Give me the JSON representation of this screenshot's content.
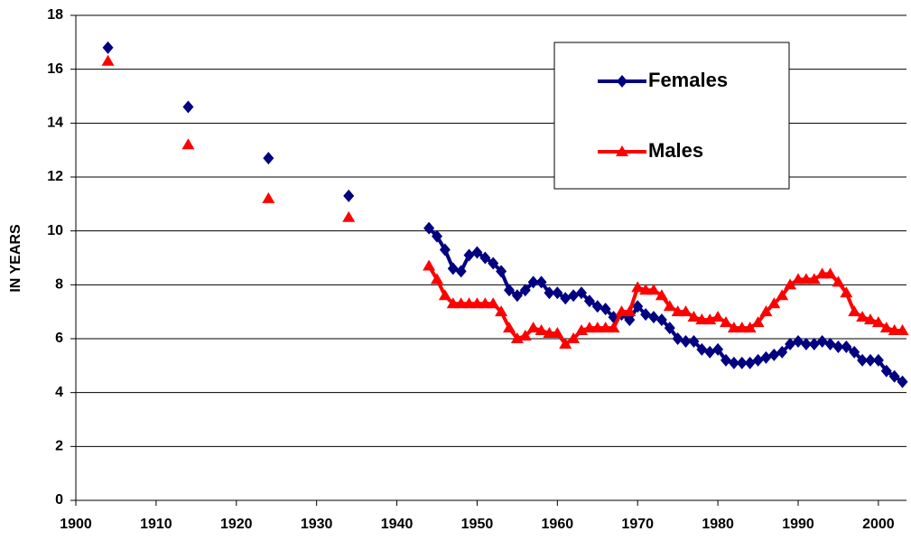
{
  "chart_data": {
    "type": "line",
    "y_label": "IN YEARS",
    "x": [
      1904,
      1909,
      1914,
      1919,
      1924,
      1929,
      1934,
      1939,
      1944,
      1945,
      1946,
      1947,
      1948,
      1949,
      1950,
      1951,
      1952,
      1953,
      1954,
      1955,
      1956,
      1957,
      1958,
      1959,
      1960,
      1961,
      1962,
      1963,
      1964,
      1965,
      1966,
      1967,
      1968,
      1969,
      1970,
      1971,
      1972,
      1973,
      1974,
      1975,
      1976,
      1977,
      1978,
      1979,
      1980,
      1981,
      1982,
      1983,
      1984,
      1985,
      1986,
      1987,
      1988,
      1989,
      1990,
      1991,
      1992,
      1993,
      1994,
      1995,
      1996,
      1997,
      1998,
      1999,
      2000,
      2001,
      2002,
      2003
    ],
    "series": [
      {
        "name": "Females",
        "color": "#000080",
        "marker": "diamond",
        "values": [
          16.8,
          null,
          14.6,
          null,
          12.7,
          null,
          11.3,
          null,
          10.1,
          9.8,
          9.3,
          8.6,
          8.5,
          9.1,
          9.2,
          9.0,
          8.8,
          8.5,
          7.8,
          7.6,
          7.8,
          8.1,
          8.1,
          7.7,
          7.7,
          7.5,
          7.6,
          7.7,
          7.4,
          7.2,
          7.1,
          6.8,
          6.9,
          6.7,
          7.2,
          6.9,
          6.8,
          6.7,
          6.4,
          6.0,
          5.9,
          5.9,
          5.6,
          5.5,
          5.6,
          5.2,
          5.1,
          5.1,
          5.1,
          5.2,
          5.3,
          5.4,
          5.5,
          5.8,
          5.9,
          5.8,
          5.8,
          5.9,
          5.8,
          5.7,
          5.7,
          5.5,
          5.2,
          5.2,
          5.2,
          4.8,
          4.6,
          4.4
        ]
      },
      {
        "name": "Males",
        "color": "#ff0000",
        "marker": "triangle",
        "values": [
          16.3,
          null,
          13.2,
          null,
          11.2,
          null,
          10.5,
          null,
          8.7,
          8.2,
          7.6,
          7.3,
          7.3,
          7.3,
          7.3,
          7.3,
          7.3,
          7.0,
          6.4,
          6.0,
          6.1,
          6.4,
          6.3,
          6.2,
          6.2,
          5.8,
          6.0,
          6.3,
          6.4,
          6.4,
          6.4,
          6.4,
          7.0,
          7.0,
          7.9,
          7.8,
          7.8,
          7.6,
          7.2,
          7.0,
          7.0,
          6.8,
          6.7,
          6.7,
          6.8,
          6.6,
          6.4,
          6.4,
          6.4,
          6.6,
          7.0,
          7.3,
          7.6,
          8.0,
          8.2,
          8.2,
          8.2,
          8.4,
          8.4,
          8.1,
          7.7,
          7.0,
          6.8,
          6.7,
          6.6,
          6.4,
          6.3,
          6.3
        ]
      }
    ],
    "xlim": [
      1900,
      2003.5
    ],
    "xticks": [
      1900,
      1910,
      1920,
      1930,
      1940,
      1950,
      1960,
      1970,
      1980,
      1990,
      2000
    ],
    "ylim": [
      0,
      18
    ],
    "yticks": [
      0,
      2,
      4,
      6,
      8,
      10,
      12,
      14,
      16,
      18
    ],
    "grid": true,
    "legend": "upper right"
  }
}
